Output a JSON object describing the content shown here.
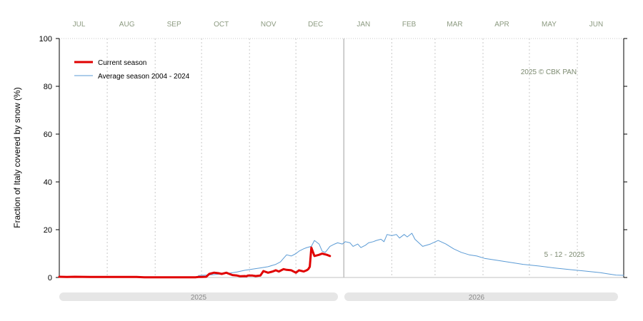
{
  "chart_data": {
    "type": "line",
    "ylabel": "Fraction of  Italy  covered by snow (%)",
    "ylim": [
      0,
      100
    ],
    "yticks": [
      0,
      20,
      40,
      60,
      80,
      100
    ],
    "x_unit": "day of season (1 Jul = 0)",
    "xlim": [
      0,
      365
    ],
    "months": [
      "JUL",
      "AUG",
      "SEP",
      "OCT",
      "NOV",
      "DEC",
      "JAN",
      "FEB",
      "MAR",
      "APR",
      "MAY",
      "JUN"
    ],
    "years": [
      "2025",
      "2026"
    ],
    "legend": {
      "current": "Current season",
      "average": "Average season 2004 - 2024"
    },
    "copyright": "2025  © CBK PAN",
    "date_note": "5 - 12 - 2025",
    "grid": true,
    "legend_position": "top-left",
    "colors": {
      "current": "#e00000",
      "average": "#5b9bd5",
      "grid": "#c8c8c8",
      "divider": "#b0b0b0",
      "year_band": "#e6e6e6",
      "month_text": "#8c9a80"
    },
    "series": [
      {
        "name": "Average season 2004 - 2024",
        "x": [
          90,
          95,
          100,
          105,
          110,
          115,
          120,
          125,
          130,
          135,
          140,
          143,
          145,
          147,
          150,
          153,
          155,
          158,
          160,
          163,
          165,
          168,
          170,
          172,
          175,
          178,
          180,
          183,
          185,
          188,
          190,
          193,
          195,
          198,
          200,
          203,
          205,
          208,
          210,
          212,
          215,
          218,
          220,
          223,
          225,
          228,
          230,
          235,
          240,
          245,
          250,
          255,
          260,
          265,
          270,
          275,
          280,
          290,
          300,
          310,
          320,
          330,
          340,
          350,
          355,
          360,
          365
        ],
        "y": [
          0.8,
          1.0,
          1.2,
          1.5,
          1.8,
          2.3,
          3.0,
          3.5,
          4.0,
          4.5,
          5.5,
          6.5,
          8.0,
          9.5,
          9.0,
          10.0,
          11.0,
          12.0,
          12.5,
          13.0,
          15.5,
          14.0,
          11.0,
          10.5,
          13.0,
          14.0,
          14.5,
          14.0,
          15.0,
          14.5,
          13.0,
          14.0,
          12.5,
          13.5,
          14.5,
          15.0,
          15.5,
          16.0,
          15.0,
          18.0,
          17.5,
          18.0,
          16.5,
          18.0,
          17.0,
          18.5,
          16.0,
          13.0,
          14.0,
          15.5,
          14.0,
          12.0,
          10.5,
          9.5,
          9.0,
          8.0,
          7.5,
          6.5,
          5.5,
          4.8,
          4.0,
          3.3,
          2.7,
          2.0,
          1.5,
          1.0,
          0.9
        ]
      },
      {
        "name": "Current season",
        "x": [
          0,
          5,
          10,
          20,
          30,
          40,
          50,
          55,
          60,
          70,
          80,
          85,
          88,
          90,
          92,
          95,
          97,
          100,
          103,
          105,
          108,
          110,
          112,
          115,
          117,
          120,
          121,
          122,
          125,
          127,
          130,
          132,
          135,
          138,
          140,
          142,
          145,
          147,
          150,
          153,
          155,
          158,
          160,
          161,
          162,
          163,
          165,
          168,
          170,
          173,
          175
        ],
        "y": [
          0.3,
          0.2,
          0.3,
          0.2,
          0.2,
          0.2,
          0.2,
          0.1,
          0.1,
          0.1,
          0.1,
          0.1,
          0.1,
          0.2,
          0.2,
          0.3,
          1.5,
          2.0,
          1.8,
          1.5,
          2.0,
          1.5,
          1.0,
          0.8,
          0.5,
          0.6,
          0.5,
          0.8,
          0.8,
          0.6,
          0.8,
          2.7,
          2.0,
          2.5,
          3.0,
          2.5,
          3.5,
          3.2,
          3.0,
          2.0,
          3.0,
          2.5,
          3.0,
          3.5,
          4.5,
          12.5,
          9.0,
          9.5,
          10.0,
          9.5,
          9.0
        ]
      }
    ]
  }
}
